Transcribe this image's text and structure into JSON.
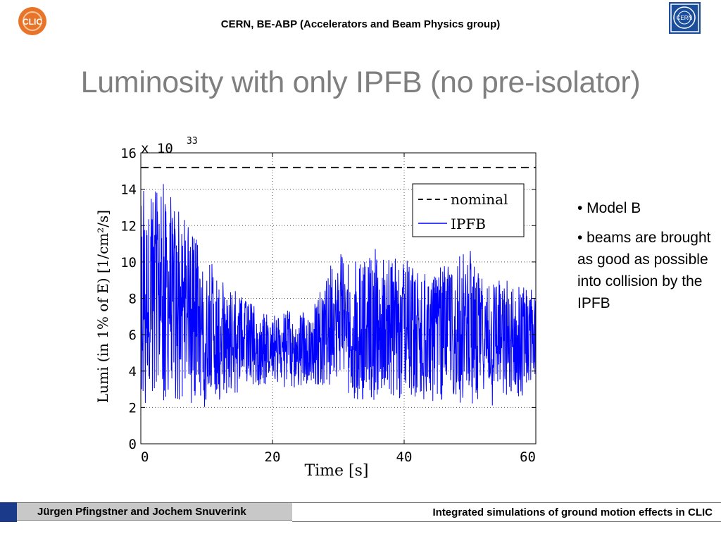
{
  "header": {
    "title": "CERN, BE-ABP (Accelerators and Beam Physics group)",
    "clic_logo_text": "CLIC",
    "cern_logo_text": "CERN"
  },
  "slide": {
    "title": "Luminosity with only IPFB (no pre-isolator)"
  },
  "chart_data": {
    "type": "line",
    "title": "",
    "xlabel": "Time [s]",
    "ylabel": "Lumi (in 1% of E) [1/cm²/s]",
    "y_scale_label": "x 10",
    "y_scale_exponent": "33",
    "xlim": [
      0,
      60
    ],
    "ylim": [
      0,
      16
    ],
    "xticks": [
      0,
      20,
      40,
      60
    ],
    "yticks": [
      0,
      2,
      4,
      6,
      8,
      10,
      12,
      14,
      16
    ],
    "grid": true,
    "legend_position": "top-right",
    "series": [
      {
        "name": "nominal",
        "style": "dashed",
        "color": "#000000",
        "values": [
          [
            0,
            15.2
          ],
          [
            60,
            15.2
          ]
        ]
      },
      {
        "name": "IPFB",
        "style": "solid",
        "color": "#0000ff",
        "envelope": {
          "x": [
            0,
            2,
            4,
            6,
            8,
            10,
            12,
            14,
            16,
            18,
            20,
            22,
            24,
            26,
            28,
            30,
            32,
            34,
            36,
            38,
            40,
            42,
            44,
            46,
            48,
            50,
            52,
            54,
            56,
            58,
            60
          ],
          "high": [
            14.8,
            14.2,
            14.6,
            13.0,
            11.5,
            10.5,
            9.3,
            8.6,
            8.0,
            7.3,
            7.0,
            7.4,
            7.2,
            7.3,
            9.2,
            11.0,
            9.5,
            11.2,
            10.6,
            10.2,
            10.4,
            9.5,
            9.4,
            9.8,
            10.2,
            10.8,
            9.3,
            9.4,
            9.0,
            8.8,
            8.8
          ],
          "low": [
            1.5,
            2.2,
            2.2,
            2.4,
            2.1,
            2.0,
            2.3,
            2.7,
            3.0,
            3.2,
            3.3,
            3.1,
            3.0,
            3.3,
            3.2,
            3.0,
            2.4,
            2.3,
            2.3,
            2.4,
            2.2,
            2.4,
            2.3,
            2.2,
            2.2,
            2.1,
            2.1,
            2.0,
            2.2,
            2.1,
            3.5
          ]
        }
      }
    ]
  },
  "bullets": [
    "• Model B",
    "• beams are brought as good as possible into collision by the IPFB"
  ],
  "footer": {
    "authors": "Jürgen Pfingstner and Jochem Snuverink",
    "talk_title": "Integrated simulations of ground motion effects in CLIC"
  },
  "colors": {
    "accent_blue": "#1b3a8a",
    "title_gray": "#7f7f7f",
    "series_blue": "#0000ff"
  }
}
